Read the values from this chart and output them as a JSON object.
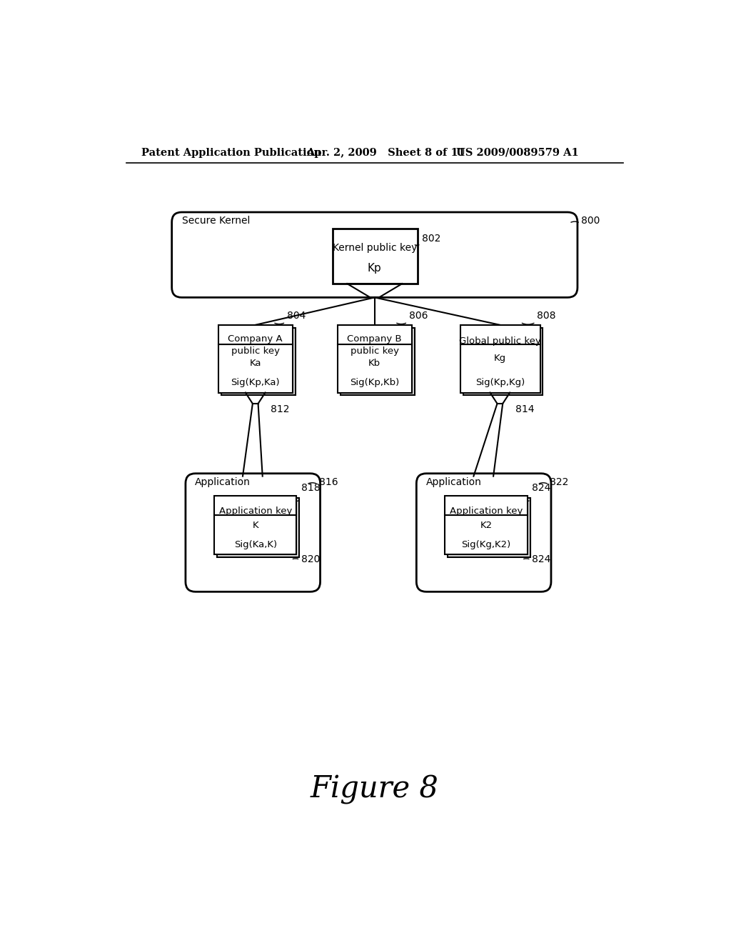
{
  "bg_color": "#ffffff",
  "header_left": "Patent Application Publication",
  "header_mid": "Apr. 2, 2009   Sheet 8 of 11",
  "header_right": "US 2009/0089579 A1",
  "figure_label": "Figure 8",
  "secure_kernel_label": "Secure Kernel",
  "secure_kernel_num": "800",
  "kernel_box_num": "802",
  "kernel_box_line1": "Kernel public key",
  "kernel_box_line2": "Kp",
  "company_a_num": "804",
  "company_a_line1": "Company A",
  "company_a_line2": "public key",
  "company_a_line3": "Ka",
  "company_a_sig": "Sig(Kp,Ka)",
  "company_b_num": "806",
  "company_b_line1": "Company B",
  "company_b_line2": "public key",
  "company_b_line3": "Kb",
  "company_b_sig": "Sig(Kp,Kb)",
  "global_num": "808",
  "global_line1": "Global public key",
  "global_line2": "Kg",
  "global_sig": "Sig(Kp,Kg)",
  "arrow_812": "812",
  "arrow_814": "814",
  "app1_label": "Application",
  "app1_num": "816",
  "app1_box_num": "818",
  "app1_box_line1": "Application key",
  "app1_box_line2": "K",
  "app1_box_sig": "Sig(Ka,K)",
  "app1_shadow_num": "820",
  "app2_label": "Application",
  "app2_num": "822",
  "app2_box_num": "824",
  "app2_box_line1": "Application key",
  "app2_box_line2": "K2",
  "app2_box_sig": "Sig(Kg,K2)",
  "app2_shadow_num": "824"
}
